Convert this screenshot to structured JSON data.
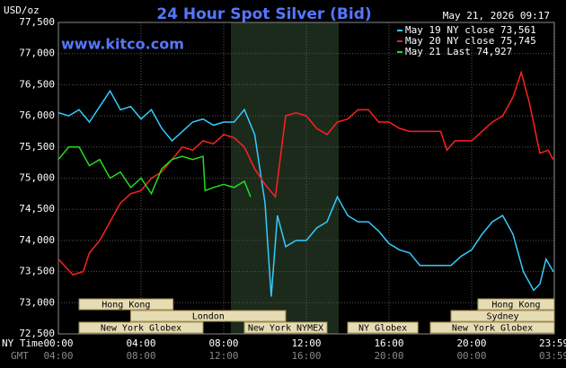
{
  "chart_data": {
    "type": "line",
    "title": "24 Hour Spot Silver (Bid)",
    "timestamp": "May 21, 2026 09:17",
    "site": "www.kitco.com",
    "y_unit": "USD/oz",
    "x_axis_labels": [
      "NY Time",
      "GMT"
    ],
    "xlim": [
      0,
      24
    ],
    "ylim": [
      72500,
      77500
    ],
    "xticks": [
      {
        "value": 0,
        "label": "00:00"
      },
      {
        "value": 4,
        "label": "04:00"
      },
      {
        "value": 8,
        "label": "08:00"
      },
      {
        "value": 12,
        "label": "12:00"
      },
      {
        "value": 16,
        "label": "16:00"
      },
      {
        "value": 20,
        "label": "20:00"
      },
      {
        "value": 23.98,
        "label": "23:59"
      }
    ],
    "gmt_ticks": [
      "04:00",
      "08:00",
      "12:00",
      "16:00",
      "20:00",
      "00:00",
      "03:59"
    ],
    "yticks": [
      {
        "value": 72500,
        "label": "72,500"
      },
      {
        "value": 73000,
        "label": "73,000"
      },
      {
        "value": 73500,
        "label": "73,500"
      },
      {
        "value": 74000,
        "label": "74,000"
      },
      {
        "value": 74500,
        "label": "74,500"
      },
      {
        "value": 75000,
        "label": "75,000"
      },
      {
        "value": 75500,
        "label": "75,500"
      },
      {
        "value": 76000,
        "label": "76,000"
      },
      {
        "value": 76500,
        "label": "76,500"
      },
      {
        "value": 77000,
        "label": "77,000"
      },
      {
        "value": 77500,
        "label": "77,500"
      }
    ],
    "sessions": [
      {
        "name": "Hong Kong",
        "start": 1,
        "end": 5.55
      },
      {
        "name": "Hong Kong",
        "start": 20.3,
        "end": 24
      },
      {
        "name": "London",
        "start": 3.5,
        "end": 11
      },
      {
        "name": "Sydney",
        "start": 19,
        "end": 24
      },
      {
        "name": "New York Globex",
        "start": 1,
        "end": 7
      },
      {
        "name": "New York NYMEX",
        "start": 9,
        "end": 13
      },
      {
        "name": "NY Globex",
        "start": 14,
        "end": 17.4
      },
      {
        "name": "New York Globex",
        "start": 18,
        "end": 24
      }
    ],
    "series": [
      {
        "name": "May 19 NY close 73,561",
        "color": "#33ccff",
        "x": [
          0,
          0.5,
          1,
          1.5,
          2,
          2.5,
          3,
          3.5,
          4,
          4.5,
          5,
          5.5,
          6,
          6.5,
          7,
          7.5,
          8,
          8.5,
          9,
          9.5,
          10,
          10.3,
          10.6,
          11,
          11.5,
          12,
          12.5,
          13,
          13.5,
          14,
          14.5,
          15,
          15.5,
          16,
          16.5,
          17,
          17.5,
          18,
          19,
          19.5,
          20,
          20.5,
          21,
          21.5,
          22,
          22.5,
          23,
          23.3,
          23.6,
          23.95
        ],
        "values": [
          76050,
          76000,
          76100,
          75900,
          76150,
          76400,
          76100,
          76150,
          75950,
          76100,
          75800,
          75600,
          75750,
          75900,
          75950,
          75850,
          75900,
          75900,
          76100,
          75700,
          74600,
          73100,
          74400,
          73900,
          74000,
          74000,
          74200,
          74300,
          74700,
          74400,
          74300,
          74300,
          74150,
          73950,
          73850,
          73800,
          73600,
          73600,
          73600,
          73750,
          73850,
          74100,
          74300,
          74400,
          74100,
          73500,
          73200,
          73300,
          73700,
          73500
        ]
      },
      {
        "name": "May 20 NY close 75,745",
        "color": "#ff2020",
        "x": [
          0,
          0.7,
          1.2,
          1.5,
          2,
          2.5,
          3,
          3.5,
          4,
          4.5,
          5,
          5.5,
          6,
          6.5,
          7,
          7.5,
          8,
          8.5,
          9,
          9.5,
          10,
          10.5,
          11,
          11.5,
          12,
          12.5,
          13,
          13.5,
          14,
          14.5,
          15,
          15.5,
          16,
          16.5,
          17,
          17.5,
          18.5,
          18.8,
          19.2,
          20,
          20.5,
          21,
          21.5,
          22,
          22.4,
          22.8,
          23.3,
          23.7,
          23.95
        ],
        "values": [
          73700,
          73450,
          73500,
          73800,
          74000,
          74300,
          74600,
          74750,
          74800,
          75000,
          75100,
          75300,
          75500,
          75450,
          75600,
          75550,
          75700,
          75650,
          75500,
          75150,
          74900,
          74700,
          76000,
          76050,
          76000,
          75800,
          75700,
          75900,
          75950,
          76100,
          76100,
          75900,
          75900,
          75800,
          75750,
          75750,
          75750,
          75450,
          75600,
          75600,
          75750,
          75900,
          76000,
          76300,
          76700,
          76200,
          75400,
          75450,
          75300
        ]
      },
      {
        "name": "May 21 Last 74,927",
        "color": "#22dd22",
        "x": [
          0,
          0.5,
          1,
          1.5,
          2,
          2.5,
          3,
          3.5,
          4,
          4.5,
          5,
          5.5,
          6,
          6.5,
          7,
          7.1,
          7.5,
          8,
          8.5,
          9,
          9.3
        ],
        "values": [
          75300,
          75500,
          75500,
          75200,
          75300,
          75000,
          75100,
          74850,
          75000,
          74750,
          75150,
          75300,
          75350,
          75300,
          75350,
          74800,
          74850,
          74900,
          74850,
          74950,
          74700
        ]
      }
    ]
  }
}
